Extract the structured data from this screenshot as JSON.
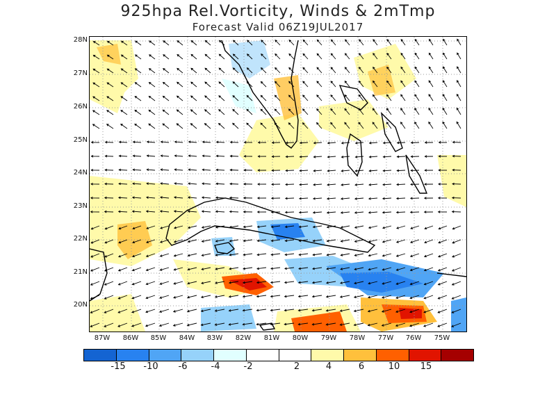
{
  "title": "925hpa Rel.Vorticity, Winds & 2mTmp",
  "subtitle": "Forecast Valid  06Z19JUL2017",
  "lat_labels": [
    "28N",
    "27N",
    "26N",
    "25N",
    "24N",
    "23N",
    "22N",
    "21N",
    "20N"
  ],
  "lon_labels": [
    "87W",
    "86W",
    "85W",
    "84W",
    "83W",
    "82W",
    "81W",
    "80W",
    "79W",
    "78W",
    "77W",
    "76W",
    "75W"
  ],
  "colorbar": {
    "colors": [
      "#1464d2",
      "#2882f0",
      "#50a5f5",
      "#96d2fa",
      "#e1ffff",
      "#ffffff",
      "#ffffff",
      "#fffaaa",
      "#ffc03c",
      "#ff6000",
      "#e11400",
      "#a50000"
    ],
    "labels": [
      "-15",
      "-10",
      "-6",
      "-4",
      "-2",
      "2",
      "4",
      "6",
      "10",
      "15"
    ]
  },
  "fill_palette": {
    "light_yellow": "#fffaaa",
    "orange": "#ffc03c",
    "dark_orange": "#ff6000",
    "red": "#e11400",
    "light_cyan": "#e1ffff",
    "light_blue": "#96d2fa",
    "mid_blue": "#50a5f5",
    "blue": "#2882f0"
  }
}
